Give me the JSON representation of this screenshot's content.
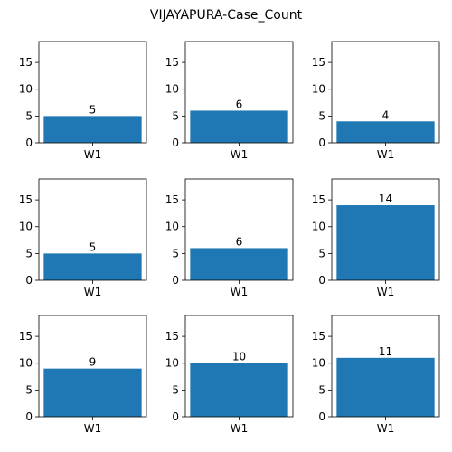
{
  "figure": {
    "title": "VIJAYAPURA-Case_Count"
  },
  "style": {
    "bar_color": "#1f77b4",
    "axis_color": "#000000",
    "background": "#ffffff"
  },
  "chart_data": [
    {
      "type": "bar",
      "categories": [
        "W1"
      ],
      "values": [
        5
      ],
      "data_labels": [
        "5"
      ],
      "ylim": [
        0,
        18.9
      ],
      "yticks": [
        0,
        5,
        10,
        15
      ],
      "grid": false
    },
    {
      "type": "bar",
      "categories": [
        "W1"
      ],
      "values": [
        6
      ],
      "data_labels": [
        "6"
      ],
      "ylim": [
        0,
        18.9
      ],
      "yticks": [
        0,
        5,
        10,
        15
      ],
      "grid": false
    },
    {
      "type": "bar",
      "categories": [
        "W1"
      ],
      "values": [
        4
      ],
      "data_labels": [
        "4"
      ],
      "ylim": [
        0,
        18.9
      ],
      "yticks": [
        0,
        5,
        10,
        15
      ],
      "grid": false
    },
    {
      "type": "bar",
      "categories": [
        "W1"
      ],
      "values": [
        5
      ],
      "data_labels": [
        "5"
      ],
      "ylim": [
        0,
        18.9
      ],
      "yticks": [
        0,
        5,
        10,
        15
      ],
      "grid": false
    },
    {
      "type": "bar",
      "categories": [
        "W1"
      ],
      "values": [
        6
      ],
      "data_labels": [
        "6"
      ],
      "ylim": [
        0,
        18.9
      ],
      "yticks": [
        0,
        5,
        10,
        15
      ],
      "grid": false
    },
    {
      "type": "bar",
      "categories": [
        "W1"
      ],
      "values": [
        14
      ],
      "data_labels": [
        "14"
      ],
      "ylim": [
        0,
        18.9
      ],
      "yticks": [
        0,
        5,
        10,
        15
      ],
      "grid": false
    },
    {
      "type": "bar",
      "categories": [
        "W1"
      ],
      "values": [
        9
      ],
      "data_labels": [
        "9"
      ],
      "ylim": [
        0,
        18.9
      ],
      "yticks": [
        0,
        5,
        10,
        15
      ],
      "grid": false
    },
    {
      "type": "bar",
      "categories": [
        "W1"
      ],
      "values": [
        10
      ],
      "data_labels": [
        "10"
      ],
      "ylim": [
        0,
        18.9
      ],
      "yticks": [
        0,
        5,
        10,
        15
      ],
      "grid": false
    },
    {
      "type": "bar",
      "categories": [
        "W1"
      ],
      "values": [
        11
      ],
      "data_labels": [
        "11"
      ],
      "ylim": [
        0,
        18.9
      ],
      "yticks": [
        0,
        5,
        10,
        15
      ],
      "grid": false
    }
  ]
}
